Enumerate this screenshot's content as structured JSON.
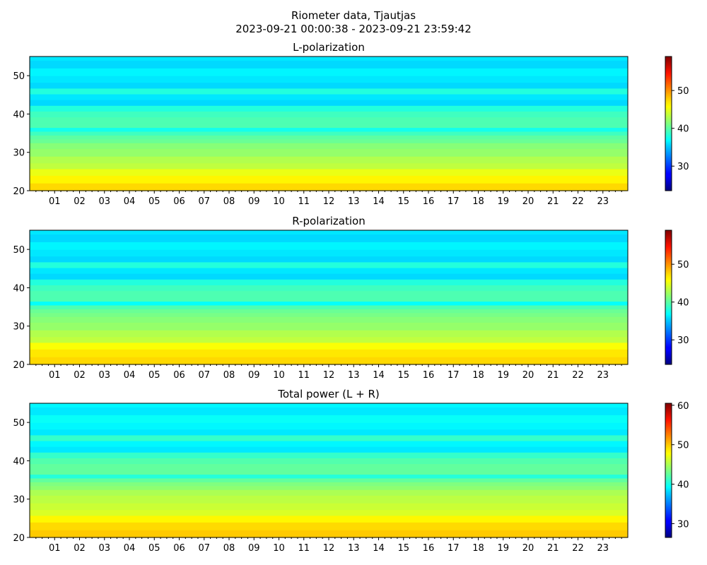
{
  "figure": {
    "title_line1": "Riometer data, Tjautjas",
    "title_line2": "2023-09-21 00:00:38 - 2023-09-21 23:59:42"
  },
  "colormap": "jet",
  "chart_data": [
    {
      "type": "heatmap",
      "title": "L-polarization",
      "x_unit": "hour of day",
      "xlim": [
        0,
        24
      ],
      "x_ticks": [
        "01",
        "02",
        "03",
        "04",
        "05",
        "06",
        "07",
        "08",
        "09",
        "10",
        "11",
        "12",
        "13",
        "14",
        "15",
        "16",
        "17",
        "18",
        "19",
        "20",
        "21",
        "22",
        "23"
      ],
      "ylim": [
        20,
        55
      ],
      "y_ticks": [
        20,
        30,
        40,
        50
      ],
      "colorbar_range": [
        23.5,
        59
      ],
      "colorbar_ticks": [
        30,
        40,
        50
      ],
      "mean_by_frequency": [
        {
          "y": 21,
          "value": 47
        },
        {
          "y": 23,
          "value": 46
        },
        {
          "y": 25,
          "value": 45
        },
        {
          "y": 26.5,
          "value": 43.5
        },
        {
          "y": 28,
          "value": 43
        },
        {
          "y": 30,
          "value": 42
        },
        {
          "y": 32,
          "value": 41.5
        },
        {
          "y": 33,
          "value": 40.5
        },
        {
          "y": 34,
          "value": 40
        },
        {
          "y": 35,
          "value": 39
        },
        {
          "y": 36,
          "value": 37.5
        },
        {
          "y": 37,
          "value": 39.5
        },
        {
          "y": 38.5,
          "value": 39.5
        },
        {
          "y": 40,
          "value": 39
        },
        {
          "y": 41.5,
          "value": 38
        },
        {
          "y": 43,
          "value": 35.5
        },
        {
          "y": 44.5,
          "value": 36
        },
        {
          "y": 46,
          "value": 38
        },
        {
          "y": 47.5,
          "value": 35.5
        },
        {
          "y": 49,
          "value": 36
        },
        {
          "y": 51,
          "value": 36.5
        },
        {
          "y": 53,
          "value": 35.5
        },
        {
          "y": 55,
          "value": 36
        }
      ]
    },
    {
      "type": "heatmap",
      "title": "R-polarization",
      "x_unit": "hour of day",
      "xlim": [
        0,
        24
      ],
      "x_ticks": [
        "01",
        "02",
        "03",
        "04",
        "05",
        "06",
        "07",
        "08",
        "09",
        "10",
        "11",
        "12",
        "13",
        "14",
        "15",
        "16",
        "17",
        "18",
        "19",
        "20",
        "21",
        "22",
        "23"
      ],
      "ylim": [
        20,
        55
      ],
      "y_ticks": [
        20,
        30,
        40,
        50
      ],
      "colorbar_range": [
        23.5,
        59
      ],
      "colorbar_ticks": [
        30,
        40,
        50
      ],
      "mean_by_frequency": [
        {
          "y": 21,
          "value": 47
        },
        {
          "y": 23,
          "value": 46.5
        },
        {
          "y": 25,
          "value": 45.5
        },
        {
          "y": 26.5,
          "value": 43.5
        },
        {
          "y": 28,
          "value": 43
        },
        {
          "y": 30,
          "value": 42
        },
        {
          "y": 32,
          "value": 41.5
        },
        {
          "y": 33,
          "value": 41
        },
        {
          "y": 34,
          "value": 40.5
        },
        {
          "y": 35,
          "value": 39.5
        },
        {
          "y": 36,
          "value": 37
        },
        {
          "y": 37,
          "value": 39.5
        },
        {
          "y": 38.5,
          "value": 39.5
        },
        {
          "y": 40,
          "value": 39
        },
        {
          "y": 41.5,
          "value": 38
        },
        {
          "y": 43,
          "value": 35.5
        },
        {
          "y": 44.5,
          "value": 36
        },
        {
          "y": 46,
          "value": 38
        },
        {
          "y": 47.5,
          "value": 35.5
        },
        {
          "y": 49,
          "value": 36
        },
        {
          "y": 51,
          "value": 36.5
        },
        {
          "y": 53,
          "value": 35.5
        },
        {
          "y": 55,
          "value": 36
        }
      ]
    },
    {
      "type": "heatmap",
      "title": "Total power (L + R)",
      "x_unit": "hour of day",
      "xlim": [
        0,
        24
      ],
      "x_ticks": [
        "01",
        "02",
        "03",
        "04",
        "05",
        "06",
        "07",
        "08",
        "09",
        "10",
        "11",
        "12",
        "13",
        "14",
        "15",
        "16",
        "17",
        "18",
        "19",
        "20",
        "21",
        "22",
        "23"
      ],
      "ylim": [
        20,
        55
      ],
      "y_ticks": [
        20,
        30,
        40,
        50
      ],
      "colorbar_range": [
        26.5,
        60.5
      ],
      "colorbar_ticks": [
        30,
        40,
        50,
        60
      ],
      "mean_by_frequency": [
        {
          "y": 21,
          "value": 49.5
        },
        {
          "y": 23,
          "value": 49
        },
        {
          "y": 25,
          "value": 48
        },
        {
          "y": 26.5,
          "value": 46.5
        },
        {
          "y": 28,
          "value": 46
        },
        {
          "y": 30,
          "value": 45.5
        },
        {
          "y": 32,
          "value": 45
        },
        {
          "y": 33,
          "value": 44
        },
        {
          "y": 34,
          "value": 43.5
        },
        {
          "y": 35,
          "value": 42.5
        },
        {
          "y": 36,
          "value": 40.5
        },
        {
          "y": 37,
          "value": 42.5
        },
        {
          "y": 38.5,
          "value": 42.5
        },
        {
          "y": 40,
          "value": 42
        },
        {
          "y": 41.5,
          "value": 41
        },
        {
          "y": 43,
          "value": 38.5
        },
        {
          "y": 44.5,
          "value": 39
        },
        {
          "y": 46,
          "value": 41
        },
        {
          "y": 47.5,
          "value": 38.5
        },
        {
          "y": 49,
          "value": 39
        },
        {
          "y": 51,
          "value": 39.5
        },
        {
          "y": 53,
          "value": 38.5
        },
        {
          "y": 55,
          "value": 39
        }
      ]
    }
  ]
}
